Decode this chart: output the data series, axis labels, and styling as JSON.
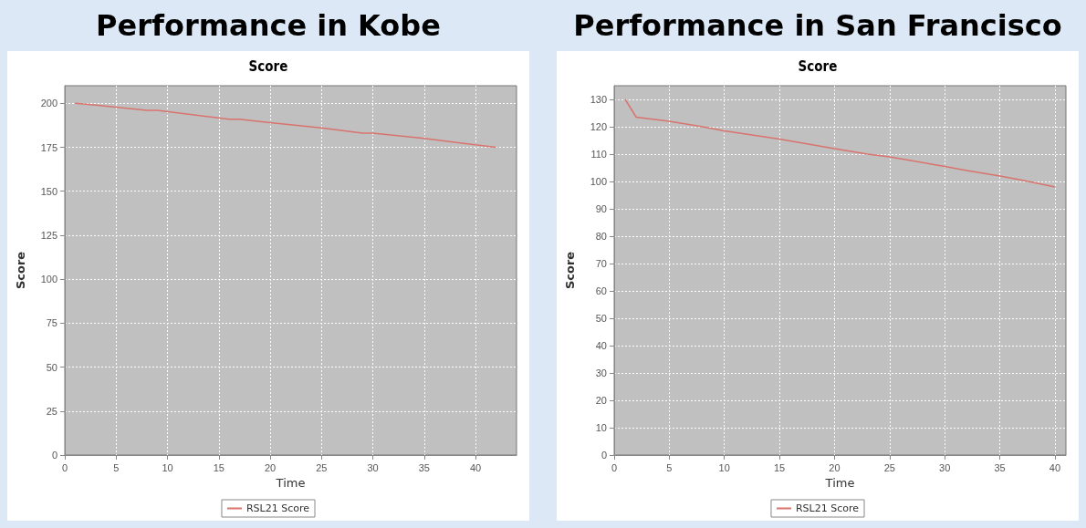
{
  "chart_data": [
    {
      "type": "line",
      "title": "Performance in Kobe",
      "subtitle": "Score",
      "xlabel": "Time",
      "ylabel": "Score",
      "x": [
        1,
        3,
        8,
        9,
        16,
        17,
        20,
        25,
        29,
        30,
        35,
        42
      ],
      "series": [
        {
          "name": "RSL21 Score",
          "color": "#d9736e",
          "values": [
            200,
            199,
            196,
            196,
            191,
            191,
            189,
            186,
            183,
            183,
            180,
            175
          ]
        }
      ],
      "xlim": [
        0,
        44
      ],
      "xticks": [
        0,
        5,
        10,
        15,
        20,
        25,
        30,
        35,
        40
      ],
      "ylim": [
        0,
        210
      ],
      "yticks": [
        0,
        25,
        50,
        75,
        100,
        125,
        150,
        175,
        200
      ],
      "grid": true,
      "legend": "bottom",
      "line_style": "solid"
    },
    {
      "type": "line",
      "title": "Performance in San Francisco",
      "subtitle": "Score",
      "xlabel": "Time",
      "ylabel": "Score",
      "x": [
        1,
        2,
        3,
        5,
        8,
        10,
        15,
        20,
        23,
        25,
        30,
        32,
        35,
        37,
        40
      ],
      "series": [
        {
          "name": "RSL21 Score",
          "color": "#d9736e",
          "values": [
            130,
            123.5,
            123,
            122,
            120,
            118.5,
            115.5,
            112,
            110,
            109,
            105.5,
            104,
            102,
            100.5,
            98
          ]
        }
      ],
      "xlim": [
        0,
        41
      ],
      "xticks": [
        0,
        5,
        10,
        15,
        20,
        25,
        30,
        35,
        40
      ],
      "ylim": [
        0,
        135
      ],
      "yticks": [
        0,
        10,
        20,
        30,
        40,
        50,
        60,
        70,
        80,
        90,
        100,
        110,
        120,
        130
      ],
      "grid": true,
      "legend": "bottom",
      "line_style": "solid"
    }
  ]
}
